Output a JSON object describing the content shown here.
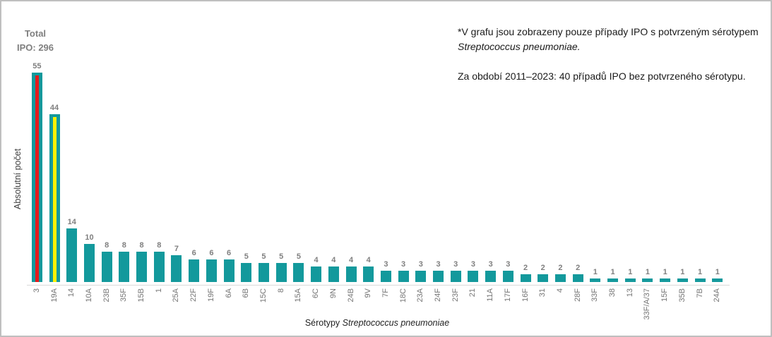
{
  "frame": {
    "border_color": "#bfbfbf",
    "background": "#ffffff"
  },
  "annotations": {
    "total_line1": "Total",
    "total_line2": "IPO: 296"
  },
  "note": {
    "line1_text": "*V grafu jsou zobrazeny pouze případy IPO s potvrzeným sérotypem",
    "line1_italic": "Streptococcus pneumoniae.",
    "line2_text": "Za období 2011–2023: 40 případů IPO bez potvrzeného sérotypu."
  },
  "chart_data": {
    "type": "bar",
    "title": "Total IPO: 296",
    "ylabel": "Absolutní počet",
    "xlabel": "Sérotypy Streptococcus pneumoniae",
    "xlabel_regular": "Sérotypy",
    "xlabel_italic": "Streptococcus pneumoniae",
    "categories": [
      "3",
      "19A",
      "14",
      "10A",
      "23B",
      "35F",
      "15B",
      "1",
      "25A",
      "22F",
      "19F",
      "6A",
      "6B",
      "15C",
      "8",
      "15A",
      "6C",
      "9N",
      "24B",
      "9V",
      "7F",
      "18C",
      "23A",
      "24F",
      "23F",
      "21",
      "11A",
      "17F",
      "16F",
      "31",
      "4",
      "28F",
      "33F",
      "38",
      "13",
      "33F/A/37",
      "15F",
      "35B",
      "7B",
      "24A"
    ],
    "values": [
      55,
      44,
      14,
      10,
      8,
      8,
      8,
      8,
      7,
      6,
      6,
      6,
      5,
      5,
      5,
      5,
      4,
      4,
      4,
      4,
      3,
      3,
      3,
      3,
      3,
      3,
      3,
      3,
      2,
      2,
      2,
      2,
      1,
      1,
      1,
      1,
      1,
      1,
      1,
      1
    ],
    "ylim": [
      0,
      60
    ],
    "grid": false,
    "legend": "none",
    "bar_color": "#13999c",
    "value_label_color": "#7f7f7f",
    "category_label_color": "#757575",
    "highlight_bars": [
      {
        "category": "3",
        "fill": "#e41a1c",
        "border": "#13999c"
      },
      {
        "category": "19A",
        "fill": "#fff200",
        "border": "#13999c"
      }
    ]
  }
}
